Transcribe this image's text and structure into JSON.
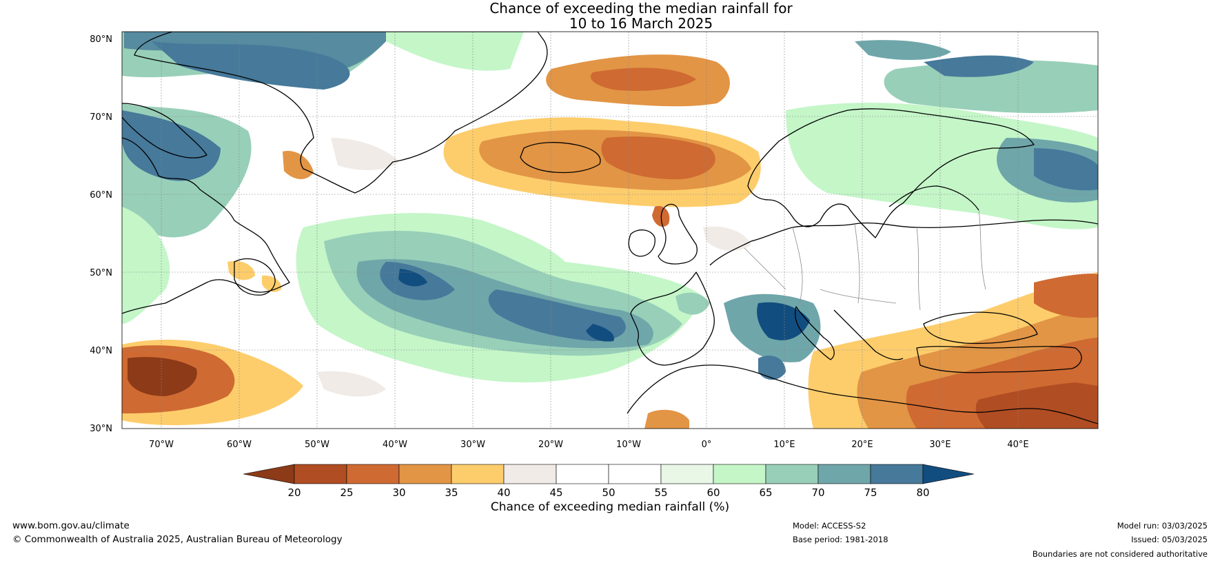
{
  "title": {
    "line1": "Chance of exceeding the median rainfall for",
    "line2": "10 to 16 March 2025"
  },
  "map": {
    "region": "North Atlantic and Europe",
    "lon_range": [
      -75,
      50
    ],
    "lat_range": [
      30,
      81
    ],
    "lat_ticks": [
      "30°N",
      "40°N",
      "50°N",
      "60°N",
      "70°N",
      "80°N"
    ],
    "lon_ticks": [
      "70°W",
      "60°W",
      "50°W",
      "40°W",
      "30°W",
      "20°W",
      "10°W",
      "0°",
      "10°E",
      "20°E",
      "30°E",
      "40°E"
    ],
    "gridlines": true
  },
  "colorbar": {
    "label": "Chance of exceeding median rainfall (%)",
    "ticks": [
      "20",
      "25",
      "30",
      "35",
      "40",
      "45",
      "50",
      "55",
      "60",
      "65",
      "70",
      "75",
      "80"
    ],
    "colors": [
      "#8c3a18",
      "#b04d23",
      "#cf6a32",
      "#e29545",
      "#fdcd6c",
      "#f0ebe6",
      "#ffffff",
      "#ffffff",
      "#e8f7e6",
      "#c4f6c8",
      "#98cfb8",
      "#6fa6aa",
      "#46799a",
      "#124d7f"
    ],
    "extend": "both"
  },
  "footer": {
    "website": "www.bom.gov.au/climate",
    "copyright": "© Commonwealth of Australia 2025, Australian Bureau of Meteorology",
    "model": "Model: ACCESS-S2",
    "base_period": "Base period: 1981-2018",
    "model_run": "Model run: 03/03/2025",
    "issued": "Issued: 05/03/2025",
    "disclaimer": "Boundaries are not considered authoritative"
  }
}
